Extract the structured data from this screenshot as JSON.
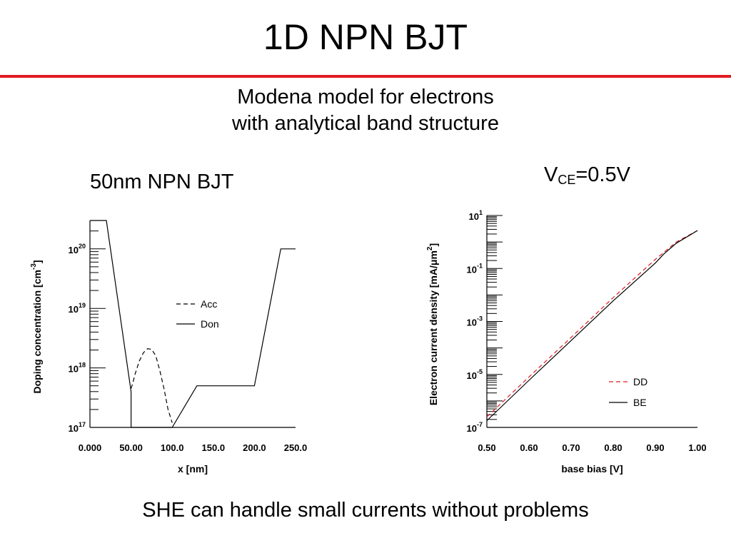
{
  "slide": {
    "title": "1D NPN BJT",
    "subtitle_lines": [
      "Modena model for electrons",
      "with analytical band structure"
    ],
    "footer": "SHE can handle small currents without problems"
  },
  "chart_data": [
    {
      "type": "line",
      "title": "50nm NPN BJT",
      "xlabel": "x  [nm]",
      "ylabel": "Doping concentration  [cm^-3]",
      "ylabel_parts": {
        "main": "Doping concentration  [cm",
        "sup": "-3",
        "end": "]"
      },
      "xlim": [
        0,
        250
      ],
      "ylim": [
        1e+17,
        3e+20
      ],
      "yscale": "log",
      "x_ticks": [
        0,
        50,
        100,
        150,
        200,
        250
      ],
      "x_tick_labels": [
        "0.000",
        "50.00",
        "100.0",
        "150.0",
        "200.0",
        "250.0"
      ],
      "y_ticks": [
        1e+17,
        1e+18,
        1e+19,
        1e+20
      ],
      "y_tick_labels": [
        {
          "base": "10",
          "exp": "17"
        },
        {
          "base": "10",
          "exp": "18"
        },
        {
          "base": "10",
          "exp": "19"
        },
        {
          "base": "10",
          "exp": "20"
        }
      ],
      "legend_position": "center",
      "series": [
        {
          "name": "Acc",
          "style": "dashed",
          "color": "#000000",
          "x": [
            50,
            52,
            55,
            60,
            65,
            70,
            75,
            80,
            85,
            90,
            95,
            100
          ],
          "y": [
            4.5e+17,
            5.5e+17,
            8e+17,
            1.3e+18,
            1.8e+18,
            2.1e+18,
            2.05e+18,
            1.6e+18,
            9e+17,
            4.5e+17,
            2e+17,
            1.2e+17
          ]
        },
        {
          "name": "Don",
          "style": "solid",
          "color": "#000000",
          "x": [
            0,
            20,
            50,
            50,
            50.01,
            100,
            100.01,
            130,
            200,
            232,
            250
          ],
          "y": [
            3e+20,
            3e+20,
            4e+17,
            1e+17,
            1e+17,
            1e+17,
            1e+17,
            5e+17,
            5e+17,
            1e+20,
            1e+20
          ]
        }
      ]
    },
    {
      "type": "line",
      "title": {
        "main": "V",
        "sub": "CE",
        "end": "=0.5V"
      },
      "xlabel": "base bias  [V]",
      "ylabel": "Electron current density  [mA/μm^2]",
      "ylabel_parts": {
        "main": "Electron current density  [mA/μm",
        "sup": "2",
        "end": "]"
      },
      "xlim": [
        0.5,
        1.0
      ],
      "ylim": [
        1e-07,
        10
      ],
      "yscale": "log",
      "x_ticks": [
        0.5,
        0.6,
        0.7,
        0.8,
        0.9,
        1.0
      ],
      "x_tick_labels": [
        "0.50",
        "0.60",
        "0.70",
        "0.80",
        "0.90",
        "1.00"
      ],
      "y_ticks": [
        1e-07,
        1e-05,
        0.001,
        0.1,
        10
      ],
      "y_tick_labels": [
        {
          "base": "10",
          "exp": "-7"
        },
        {
          "base": "10",
          "exp": "-5"
        },
        {
          "base": "10",
          "exp": "-3"
        },
        {
          "base": "10",
          "exp": "-1"
        },
        {
          "base": "10",
          "exp": "1"
        }
      ],
      "legend_position": "bottom-right",
      "series": [
        {
          "name": "DD",
          "style": "dashed",
          "color": "#e11b22",
          "x": [
            0.5,
            0.6,
            0.7,
            0.8,
            0.9,
            0.95,
            1.0
          ],
          "y": [
            2.5e-07,
            8e-06,
            0.00025,
            0.008,
            0.22,
            1.0,
            2.7
          ]
        },
        {
          "name": "BE",
          "style": "solid",
          "color": "#000000",
          "x": [
            0.5,
            0.6,
            0.7,
            0.8,
            0.9,
            0.92,
            0.95,
            1.0
          ],
          "y": [
            1.8e-07,
            6e-06,
            0.00019,
            0.006,
            0.16,
            0.35,
            0.9,
            2.7
          ]
        }
      ]
    }
  ]
}
